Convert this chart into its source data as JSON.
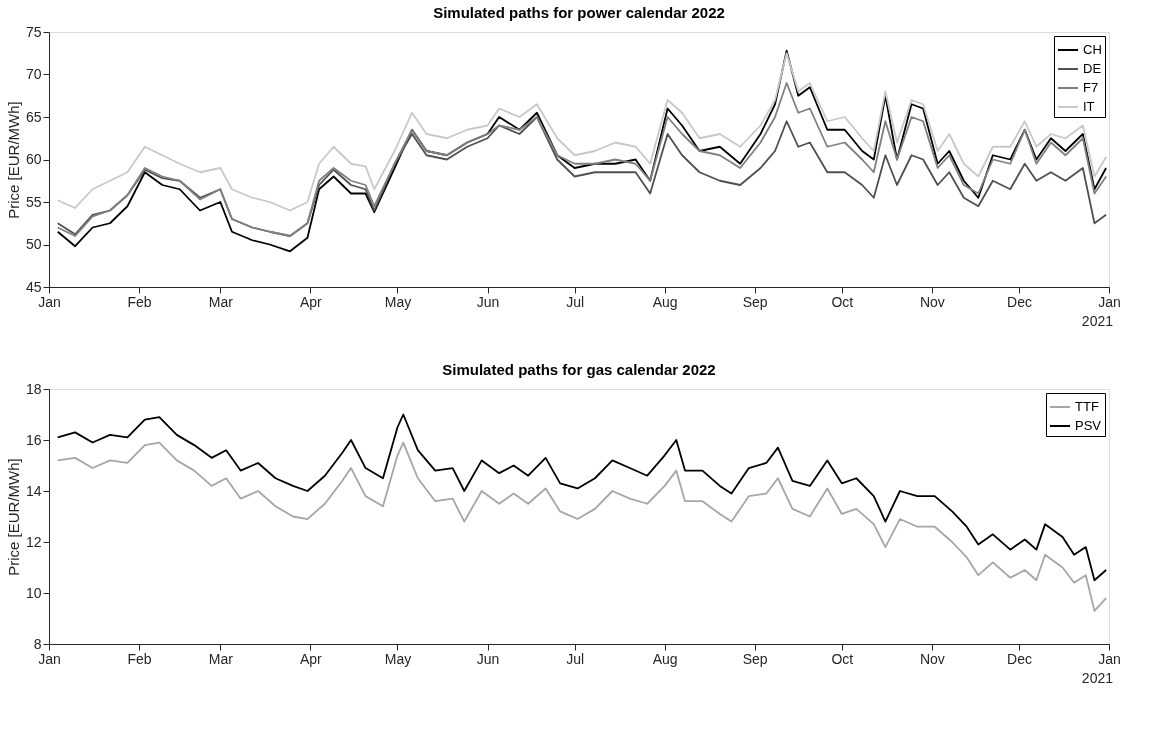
{
  "chart_data": [
    {
      "type": "line",
      "title": "Simulated paths for power calendar 2022",
      "ylabel": "Price [EUR/MWh]",
      "x": [
        "2021-01-04",
        "2021-01-10",
        "2021-01-16",
        "2021-01-22",
        "2021-01-28",
        "2021-02-03",
        "2021-02-09",
        "2021-02-15",
        "2021-02-22",
        "2021-03-01",
        "2021-03-05",
        "2021-03-12",
        "2021-03-18",
        "2021-03-25",
        "2021-03-31",
        "2021-04-04",
        "2021-04-09",
        "2021-04-15",
        "2021-04-20",
        "2021-04-23",
        "2021-04-30",
        "2021-05-06",
        "2021-05-11",
        "2021-05-18",
        "2021-05-25",
        "2021-06-01",
        "2021-06-05",
        "2021-06-12",
        "2021-06-18",
        "2021-06-25",
        "2021-07-01",
        "2021-07-08",
        "2021-07-15",
        "2021-07-22",
        "2021-07-27",
        "2021-08-02",
        "2021-08-07",
        "2021-08-13",
        "2021-08-20",
        "2021-08-27",
        "2021-09-03",
        "2021-09-08",
        "2021-09-12",
        "2021-09-16",
        "2021-09-20",
        "2021-09-26",
        "2021-10-02",
        "2021-10-08",
        "2021-10-12",
        "2021-10-16",
        "2021-10-20",
        "2021-10-25",
        "2021-10-29",
        "2021-11-03",
        "2021-11-07",
        "2021-11-12",
        "2021-11-17",
        "2021-11-22",
        "2021-11-28",
        "2021-12-03",
        "2021-12-07",
        "2021-12-12",
        "2021-12-17",
        "2021-12-23",
        "2021-12-27",
        "2021-12-31"
      ],
      "series": [
        {
          "name": "CH",
          "color": "#000000",
          "values": [
            51.5,
            49.8,
            52,
            52.5,
            54.5,
            58.5,
            57,
            56.5,
            54,
            55,
            51.5,
            50.5,
            50,
            49.2,
            50.8,
            56.5,
            58,
            56,
            56,
            53.8,
            59,
            63.5,
            61,
            60.5,
            62,
            63,
            65,
            63.5,
            65.5,
            60.5,
            59,
            59.5,
            59.5,
            60,
            57.5,
            66,
            64,
            61,
            61.5,
            59.5,
            63,
            66.5,
            72.8,
            67.5,
            68.5,
            63.5,
            63.5,
            61,
            60,
            67.5,
            60,
            66.5,
            66,
            59.5,
            61,
            57.5,
            55.5,
            60.5,
            60,
            63.5,
            60,
            62.5,
            61,
            63,
            56.5,
            59
          ]
        },
        {
          "name": "DE",
          "color": "#505050",
          "values": [
            52.5,
            51.2,
            53.5,
            54,
            55.8,
            58.8,
            57.8,
            57.5,
            55.5,
            56.5,
            53,
            52,
            51.5,
            51,
            52.5,
            57,
            58.8,
            57,
            56.5,
            54,
            59.5,
            63,
            60.5,
            60,
            61.5,
            62.5,
            64,
            63,
            65,
            60,
            58,
            58.5,
            58.5,
            58.5,
            56,
            63,
            60.5,
            58.5,
            57.5,
            57,
            59,
            61,
            64.5,
            61.5,
            62,
            58.5,
            58.5,
            57,
            55.5,
            60.5,
            57,
            60.5,
            60,
            57,
            58.5,
            55.5,
            54.5,
            57.5,
            56.5,
            59.5,
            57.5,
            58.5,
            57.5,
            59,
            52.5,
            53.5
          ]
        },
        {
          "name": "F7",
          "color": "#808080",
          "values": [
            52,
            51,
            53.3,
            54,
            55.8,
            59,
            58,
            57.5,
            55.3,
            56.5,
            53,
            52,
            51.5,
            51,
            52.5,
            57.5,
            59,
            57.5,
            57,
            54.5,
            59.5,
            63.5,
            61,
            60.5,
            62,
            63,
            64,
            63.5,
            65,
            60.5,
            59.5,
            59.5,
            60,
            59.5,
            57.5,
            65,
            63,
            61,
            60.5,
            59,
            62,
            65,
            69,
            65.5,
            66,
            61.5,
            62,
            60,
            58.5,
            64.5,
            60,
            65,
            64.5,
            59,
            60.5,
            57,
            56,
            60,
            59.5,
            63.5,
            59.5,
            62,
            60.5,
            62.5,
            56,
            58
          ]
        },
        {
          "name": "IT",
          "color": "#c8c8c8",
          "values": [
            55.2,
            54.3,
            56.5,
            57.5,
            58.5,
            61.5,
            60.5,
            59.5,
            58.5,
            59,
            56.5,
            55.5,
            55,
            54,
            55,
            59.5,
            61.5,
            59.5,
            59.2,
            56.5,
            61,
            65.5,
            63,
            62.5,
            63.5,
            64,
            66,
            65,
            66.5,
            62.5,
            60.5,
            61,
            62,
            61.5,
            59.5,
            67,
            65.5,
            62.5,
            63,
            61.5,
            64,
            67,
            72.5,
            68,
            69,
            64.5,
            65,
            62.5,
            61,
            68,
            62,
            67,
            66.5,
            61,
            63,
            59.5,
            58,
            61.5,
            61.5,
            64.5,
            61.5,
            63,
            62.5,
            64,
            58,
            60.3
          ]
        }
      ],
      "xlim": [
        "2021-01-01",
        "2022-01-01"
      ],
      "xticks": [
        {
          "value": "2021-01-01",
          "label": "Jan"
        },
        {
          "value": "2021-02-01",
          "label": "Feb"
        },
        {
          "value": "2021-03-01",
          "label": "Mar"
        },
        {
          "value": "2021-04-01",
          "label": "Apr"
        },
        {
          "value": "2021-05-01",
          "label": "May"
        },
        {
          "value": "2021-06-01",
          "label": "Jun"
        },
        {
          "value": "2021-07-01",
          "label": "Jul"
        },
        {
          "value": "2021-08-01",
          "label": "Aug"
        },
        {
          "value": "2021-09-01",
          "label": "Sep"
        },
        {
          "value": "2021-10-01",
          "label": "Oct"
        },
        {
          "value": "2021-11-01",
          "label": "Nov"
        },
        {
          "value": "2021-12-01",
          "label": "Dec"
        },
        {
          "value": "2022-01-01",
          "label": "Jan"
        }
      ],
      "ylim": [
        45,
        75
      ],
      "yticks": [
        45,
        50,
        55,
        60,
        65,
        70,
        75
      ],
      "annotations": [
        "2021"
      ],
      "legend": "top right",
      "grid": false
    },
    {
      "type": "line",
      "title": "Simulated paths for gas calendar 2022",
      "ylabel": "Price [EUR/MWh]",
      "x": [
        "2021-01-04",
        "2021-01-10",
        "2021-01-16",
        "2021-01-22",
        "2021-01-28",
        "2021-02-03",
        "2021-02-08",
        "2021-02-14",
        "2021-02-20",
        "2021-02-26",
        "2021-03-03",
        "2021-03-08",
        "2021-03-14",
        "2021-03-20",
        "2021-03-26",
        "2021-03-31",
        "2021-04-06",
        "2021-04-12",
        "2021-04-15",
        "2021-04-20",
        "2021-04-26",
        "2021-05-01",
        "2021-05-03",
        "2021-05-08",
        "2021-05-14",
        "2021-05-20",
        "2021-05-24",
        "2021-05-30",
        "2021-06-05",
        "2021-06-10",
        "2021-06-15",
        "2021-06-21",
        "2021-06-26",
        "2021-07-02",
        "2021-07-08",
        "2021-07-14",
        "2021-07-20",
        "2021-07-26",
        "2021-08-01",
        "2021-08-05",
        "2021-08-08",
        "2021-08-14",
        "2021-08-20",
        "2021-08-24",
        "2021-08-30",
        "2021-09-05",
        "2021-09-09",
        "2021-09-14",
        "2021-09-20",
        "2021-09-26",
        "2021-10-01",
        "2021-10-06",
        "2021-10-12",
        "2021-10-16",
        "2021-10-21",
        "2021-10-27",
        "2021-11-02",
        "2021-11-08",
        "2021-11-13",
        "2021-11-17",
        "2021-11-22",
        "2021-11-28",
        "2021-12-03",
        "2021-12-07",
        "2021-12-10",
        "2021-12-16",
        "2021-12-20",
        "2021-12-24",
        "2021-12-27",
        "2021-12-31"
      ],
      "series": [
        {
          "name": "TTF",
          "color": "#a6a6a6",
          "values": [
            15.2,
            15.3,
            14.9,
            15.2,
            15.1,
            15.8,
            15.9,
            15.2,
            14.8,
            14.2,
            14.5,
            13.7,
            14.0,
            13.4,
            13.0,
            12.9,
            13.5,
            14.4,
            14.9,
            13.8,
            13.4,
            15.4,
            15.9,
            14.5,
            13.6,
            13.7,
            12.8,
            14.0,
            13.5,
            13.9,
            13.5,
            14.1,
            13.2,
            12.9,
            13.3,
            14.0,
            13.7,
            13.5,
            14.2,
            14.8,
            13.6,
            13.6,
            13.1,
            12.8,
            13.8,
            13.9,
            14.5,
            13.3,
            13.0,
            14.1,
            13.1,
            13.3,
            12.7,
            11.8,
            12.9,
            12.6,
            12.6,
            12.0,
            11.4,
            10.7,
            11.2,
            10.6,
            10.9,
            10.5,
            11.5,
            11.0,
            10.4,
            10.7,
            9.3,
            9.8
          ]
        },
        {
          "name": "PSV",
          "color": "#000000",
          "values": [
            16.1,
            16.3,
            15.9,
            16.2,
            16.1,
            16.8,
            16.9,
            16.2,
            15.8,
            15.3,
            15.6,
            14.8,
            15.1,
            14.5,
            14.2,
            14.0,
            14.6,
            15.5,
            16.0,
            14.9,
            14.5,
            16.5,
            17.0,
            15.6,
            14.8,
            14.9,
            14.0,
            15.2,
            14.7,
            15.0,
            14.6,
            15.3,
            14.3,
            14.1,
            14.5,
            15.2,
            14.9,
            14.6,
            15.4,
            16.0,
            14.8,
            14.8,
            14.2,
            13.9,
            14.9,
            15.1,
            15.7,
            14.4,
            14.2,
            15.2,
            14.3,
            14.5,
            13.8,
            12.8,
            14.0,
            13.8,
            13.8,
            13.2,
            12.6,
            11.9,
            12.3,
            11.7,
            12.1,
            11.7,
            12.7,
            12.2,
            11.5,
            11.8,
            10.5,
            10.9
          ]
        }
      ],
      "xlim": [
        "2021-01-01",
        "2022-01-01"
      ],
      "xticks": [
        {
          "value": "2021-01-01",
          "label": "Jan"
        },
        {
          "value": "2021-02-01",
          "label": "Feb"
        },
        {
          "value": "2021-03-01",
          "label": "Mar"
        },
        {
          "value": "2021-04-01",
          "label": "Apr"
        },
        {
          "value": "2021-05-01",
          "label": "May"
        },
        {
          "value": "2021-06-01",
          "label": "Jun"
        },
        {
          "value": "2021-07-01",
          "label": "Jul"
        },
        {
          "value": "2021-08-01",
          "label": "Aug"
        },
        {
          "value": "2021-09-01",
          "label": "Sep"
        },
        {
          "value": "2021-10-01",
          "label": "Oct"
        },
        {
          "value": "2021-11-01",
          "label": "Nov"
        },
        {
          "value": "2021-12-01",
          "label": "Dec"
        },
        {
          "value": "2022-01-01",
          "label": "Jan"
        }
      ],
      "ylim": [
        8,
        18
      ],
      "yticks": [
        8,
        10,
        12,
        14,
        16,
        18
      ],
      "annotations": [
        "2021"
      ],
      "legend": "top right",
      "grid": false
    }
  ]
}
